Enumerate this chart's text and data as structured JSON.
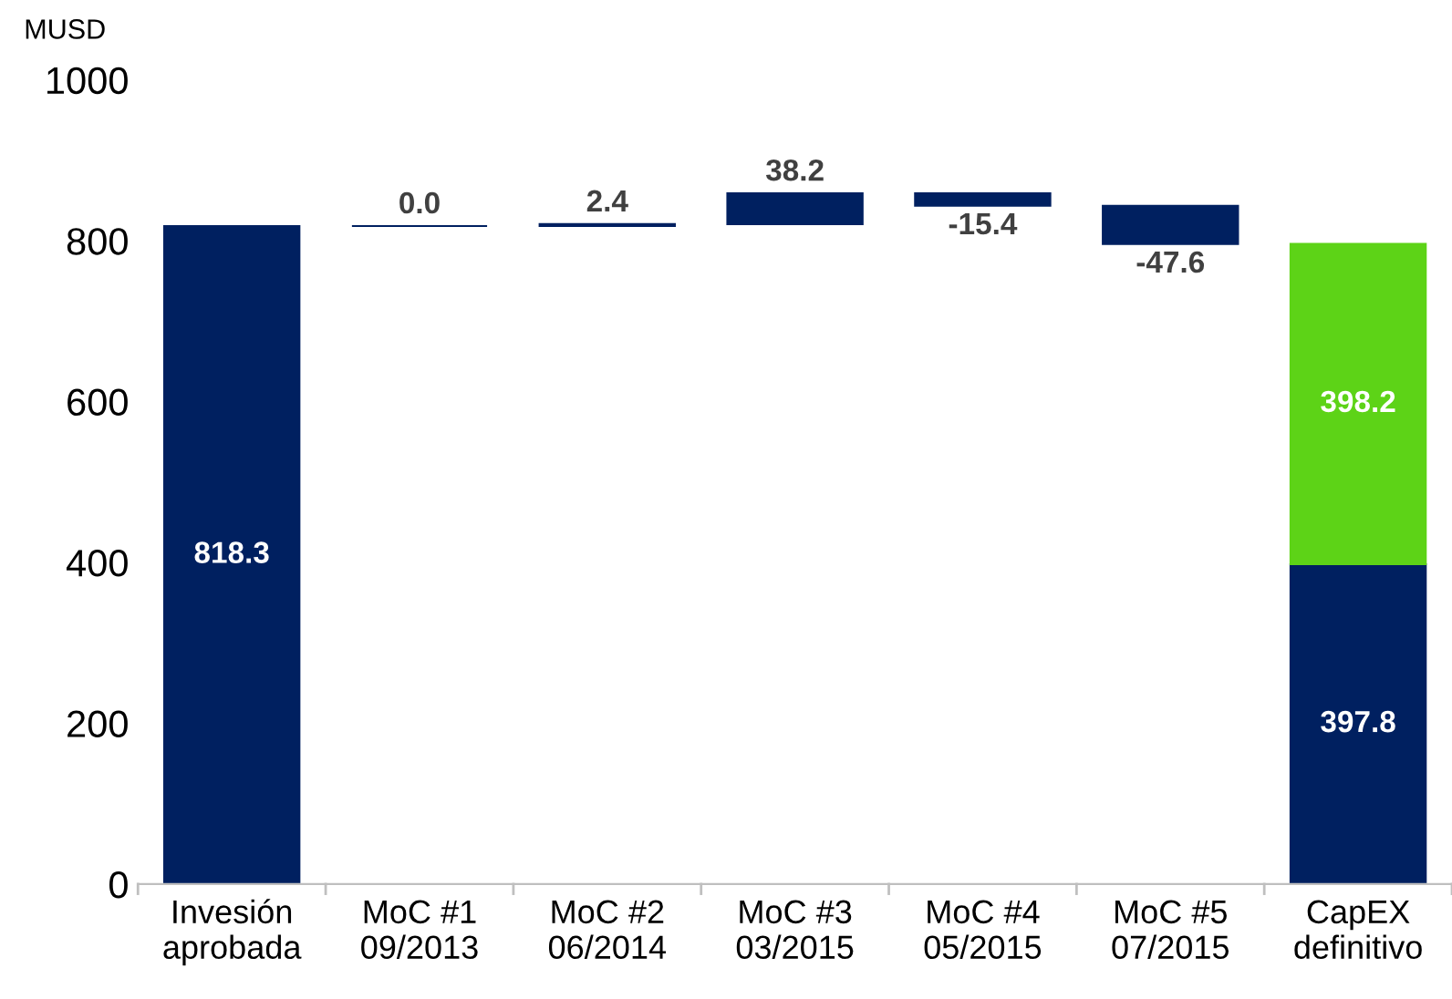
{
  "chart_data": {
    "type": "bar",
    "ylabel": "MUSD",
    "categories": [
      "Invesión\naprobada",
      "MoC #1\n09/2013",
      "MoC #2\n06/2014",
      "MoC #3\n03/2015",
      "MoC #4\n05/2015",
      "MoC #5\n07/2015",
      "CapEX\ndefinitivo"
    ],
    "series": [
      {
        "color": "#002060",
        "base": [
          0,
          818.3,
          818.3,
          820.7,
          858.9,
          843.5,
          0
        ],
        "values": [
          818.3,
          0.0,
          2.4,
          38.2,
          -15.4,
          -47.6,
          397.8
        ],
        "value_labels": [
          "818.3",
          "0.0",
          "2.4",
          "38.2",
          "-15.4",
          "-47.6",
          "397.8"
        ]
      },
      {
        "color": "#5dd317",
        "base": [
          null,
          null,
          null,
          null,
          null,
          null,
          397.8
        ],
        "values": [
          null,
          null,
          null,
          null,
          null,
          null,
          398.2
        ],
        "value_labels": [
          null,
          null,
          null,
          null,
          null,
          null,
          "398.2"
        ]
      }
    ],
    "ylim": [
      0,
      1000
    ],
    "yticks": [
      0,
      200,
      400,
      600,
      800,
      1000
    ],
    "grid": false,
    "legend": false
  }
}
